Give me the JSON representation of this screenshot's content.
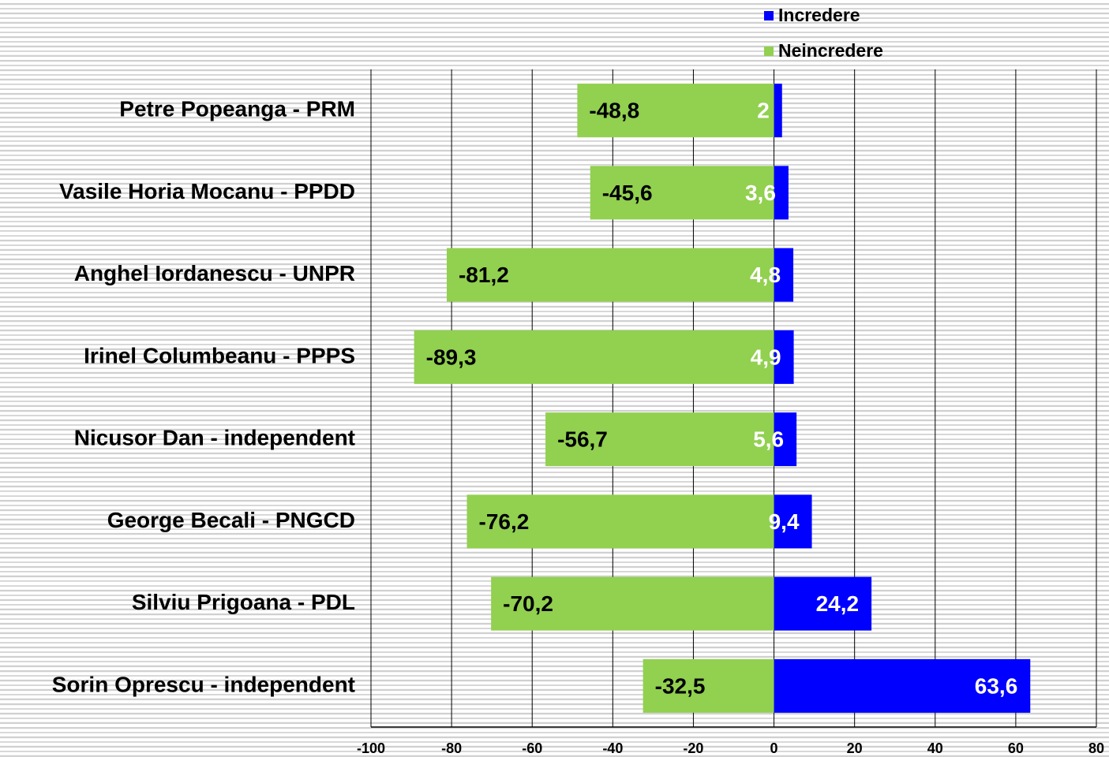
{
  "chart_data": {
    "type": "diverging_bar",
    "categories": [
      "Petre Popeanga - PRM",
      "Vasile Horia Mocanu - PPDD",
      "Anghel Iordanescu - UNPR",
      "Irinel Columbeanu - PPPS",
      "Nicusor Dan - independent",
      "George Becali - PNGCD",
      "Silviu Prigoana - PDL",
      "Sorin Oprescu - independent"
    ],
    "series": [
      {
        "name": "Increderе",
        "color": "#0000ff",
        "values": [
          2,
          3.6,
          4.8,
          4.9,
          5.6,
          9.4,
          24.2,
          63.6
        ],
        "value_labels": [
          "2",
          "3,6",
          "4,8",
          "4,9",
          "5,6",
          "9,4",
          "24,2",
          "63,6"
        ]
      },
      {
        "name": "Neincredere",
        "color": "#92d050",
        "values": [
          -48.8,
          -45.6,
          -81.2,
          -89.3,
          -56.7,
          -76.2,
          -70.2,
          -32.5
        ],
        "value_labels": [
          "-48,8",
          "-45,6",
          "-81,2",
          "-89,3",
          "-56,7",
          "-76,2",
          "-70,2",
          "-32,5"
        ]
      }
    ],
    "xlim": [
      -100,
      80
    ],
    "xticks": [
      -100,
      -80,
      -60,
      -40,
      -20,
      0,
      20,
      40,
      60,
      80
    ],
    "grid": true,
    "legend": "top"
  }
}
